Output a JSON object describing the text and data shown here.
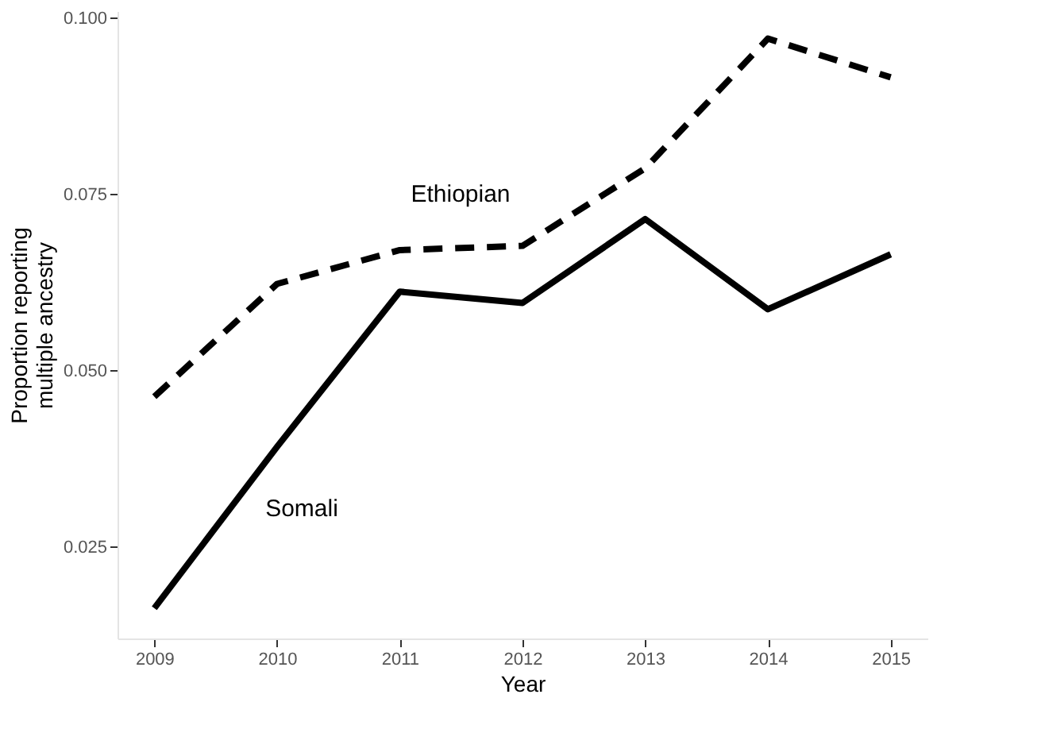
{
  "chart_data": {
    "type": "line",
    "xlabel": "Year",
    "ylabel": "Proportion reporting\nmultiple ancestry",
    "x": [
      2009,
      2010,
      2011,
      2012,
      2013,
      2014,
      2015
    ],
    "series": [
      {
        "name": "Ethiopian",
        "color": "#000000",
        "line_style": "dashed",
        "values": [
          0.0463,
          0.0623,
          0.0671,
          0.0677,
          0.0787,
          0.0971,
          0.0916
        ]
      },
      {
        "name": "Somali",
        "color": "#000000",
        "line_style": "solid",
        "values": [
          0.0163,
          0.0392,
          0.0612,
          0.0596,
          0.0715,
          0.0587,
          0.0665
        ]
      }
    ],
    "xlim": [
      2008.7,
      2015.3
    ],
    "xticks": [
      2009,
      2010,
      2011,
      2012,
      2013,
      2014,
      2015
    ],
    "ylim": [
      0.012,
      0.101
    ],
    "yticks": [
      {
        "value": 0.025,
        "label": "0.025"
      },
      {
        "value": 0.05,
        "label": "0.050"
      },
      {
        "value": 0.075,
        "label": "0.075"
      },
      {
        "value": 0.1,
        "label": "0.100"
      }
    ],
    "grid": false
  }
}
